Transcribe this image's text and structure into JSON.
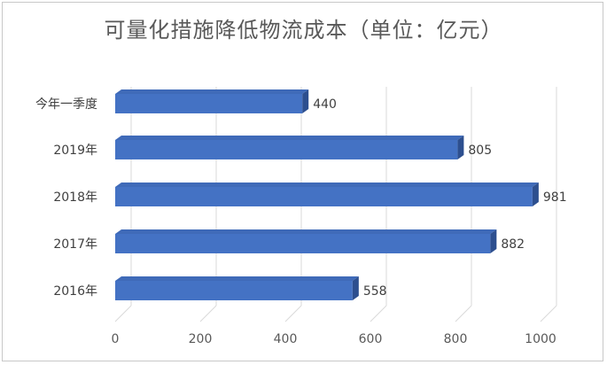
{
  "chart_data": {
    "type": "bar",
    "orientation": "horizontal",
    "title": "可量化措施降低物流成本（单位：亿元）",
    "categories": [
      "今年一季度",
      "2019年",
      "2018年",
      "2017年",
      "2016年"
    ],
    "values": [
      440,
      805,
      981,
      882,
      558
    ],
    "xlim": [
      0,
      1000
    ],
    "xticks": [
      0,
      200,
      400,
      600,
      800,
      1000
    ],
    "grid": true,
    "bar_color": "#4472c4",
    "data_labels": true
  }
}
